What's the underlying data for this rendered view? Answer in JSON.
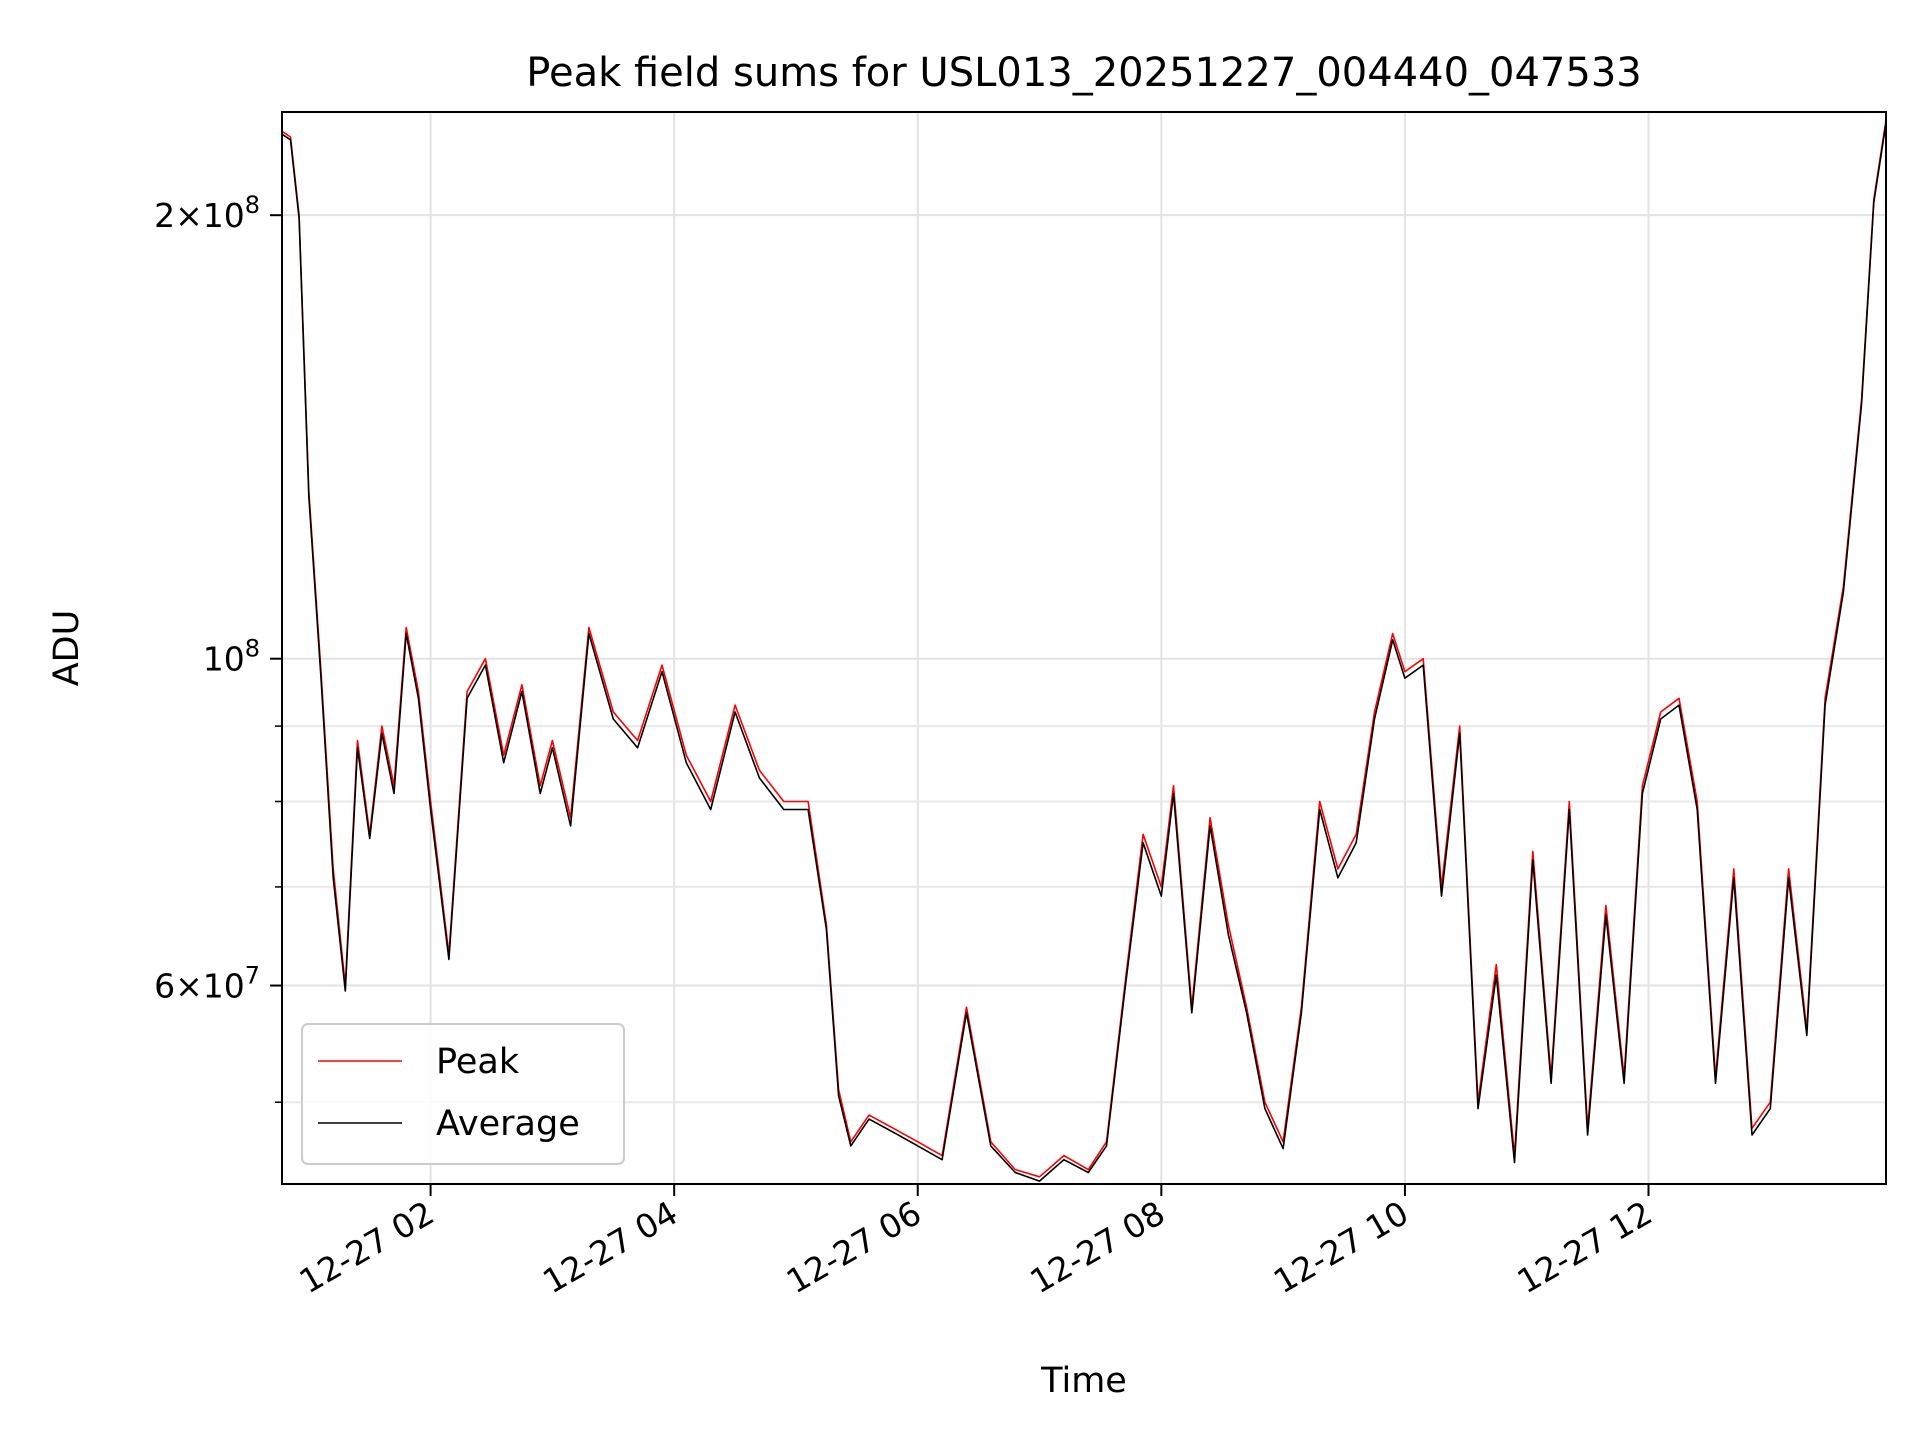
{
  "chart_data": {
    "type": "line",
    "title": "Peak field sums for USL013_20251227_004440_047533",
    "xlabel": "Time",
    "ylabel": "ADU",
    "yscale": "log",
    "xlim_hours": [
      0.78,
      13.95
    ],
    "ylim": [
      44000000,
      235000000
    ],
    "grid": true,
    "legend_position": "lower-left",
    "x_ticks": [
      {
        "hours": 2,
        "label": "12-27 02"
      },
      {
        "hours": 4,
        "label": "12-27 04"
      },
      {
        "hours": 6,
        "label": "12-27 06"
      },
      {
        "hours": 8,
        "label": "12-27 08"
      },
      {
        "hours": 10,
        "label": "12-27 10"
      },
      {
        "hours": 12,
        "label": "12-27 12"
      }
    ],
    "y_ticks": [
      {
        "value": 60000000,
        "base": "6",
        "exp": "7"
      },
      {
        "value": 100000000,
        "base": "10",
        "exp": "8"
      },
      {
        "value": 200000000,
        "base": "2",
        "exp": "8"
      }
    ],
    "y_minor_ticks": [
      50000000,
      70000000,
      80000000,
      90000000
    ],
    "x": [
      0.78,
      0.85,
      0.92,
      1.0,
      1.1,
      1.2,
      1.3,
      1.4,
      1.5,
      1.6,
      1.7,
      1.8,
      1.9,
      2.0,
      2.15,
      2.3,
      2.45,
      2.6,
      2.75,
      2.9,
      3.0,
      3.15,
      3.3,
      3.5,
      3.7,
      3.9,
      4.1,
      4.3,
      4.5,
      4.7,
      4.9,
      5.1,
      5.25,
      5.35,
      5.45,
      5.6,
      5.8,
      6.0,
      6.2,
      6.4,
      6.6,
      6.8,
      7.0,
      7.2,
      7.4,
      7.55,
      7.7,
      7.85,
      8.0,
      8.1,
      8.25,
      8.4,
      8.55,
      8.7,
      8.85,
      9.0,
      9.15,
      9.3,
      9.45,
      9.6,
      9.75,
      9.9,
      10.0,
      10.15,
      10.3,
      10.45,
      10.6,
      10.75,
      10.9,
      11.05,
      11.2,
      11.35,
      11.5,
      11.65,
      11.8,
      11.95,
      12.1,
      12.25,
      12.4,
      12.55,
      12.7,
      12.85,
      13.0,
      13.15,
      13.3,
      13.45,
      13.6,
      13.75,
      13.85,
      13.95
    ],
    "series": [
      {
        "name": "Peak",
        "color": "#ff0000",
        "values": [
          228000000,
          226000000,
          200000000,
          130000000,
          98000000,
          72000000,
          60000000,
          88000000,
          76000000,
          90000000,
          82000000,
          105000000,
          95000000,
          80000000,
          63000000,
          95000000,
          100000000,
          86000000,
          96000000,
          82000000,
          88000000,
          78000000,
          105000000,
          92000000,
          88000000,
          99000000,
          86000000,
          80000000,
          93000000,
          84000000,
          80000000,
          80000000,
          66000000,
          51000000,
          47000000,
          49000000,
          48000000,
          47000000,
          46000000,
          58000000,
          47000000,
          45000000,
          44500000,
          46000000,
          45000000,
          47000000,
          60000000,
          76000000,
          70000000,
          82000000,
          58000000,
          78000000,
          66000000,
          58000000,
          50000000,
          47000000,
          58000000,
          80000000,
          72000000,
          76000000,
          92000000,
          104000000,
          98000000,
          100000000,
          70000000,
          90000000,
          50000000,
          62000000,
          46000000,
          74000000,
          52000000,
          80000000,
          48000000,
          68000000,
          52000000,
          82000000,
          92000000,
          94000000,
          80000000,
          52000000,
          72000000,
          48000000,
          50000000,
          72000000,
          56000000,
          94000000,
          112000000,
          150000000,
          205000000,
          232000000
        ]
      },
      {
        "name": "Average",
        "color": "#000000",
        "values": [
          227000000,
          225000000,
          199000000,
          129000000,
          97000000,
          71000000,
          59500000,
          87000000,
          75500000,
          89000000,
          81000000,
          104000000,
          94000000,
          79000000,
          62500000,
          94000000,
          99000000,
          85000000,
          95000000,
          81000000,
          87000000,
          77000000,
          104000000,
          91000000,
          87000000,
          98000000,
          85000000,
          79000000,
          92000000,
          83000000,
          79000000,
          79000000,
          65500000,
          50500000,
          46700000,
          48700000,
          47700000,
          46700000,
          45700000,
          57500000,
          46700000,
          44800000,
          44200000,
          45700000,
          44800000,
          46700000,
          59500000,
          75000000,
          69000000,
          81000000,
          57500000,
          77000000,
          65000000,
          57500000,
          49500000,
          46500000,
          57500000,
          79000000,
          71000000,
          75000000,
          91000000,
          103000000,
          97000000,
          99000000,
          69000000,
          89000000,
          49500000,
          61000000,
          45500000,
          73000000,
          51500000,
          79000000,
          47500000,
          67000000,
          51500000,
          81000000,
          91000000,
          93000000,
          79000000,
          51500000,
          71000000,
          47500000,
          49500000,
          71000000,
          55500000,
          93000000,
          111000000,
          149000000,
          204000000,
          231000000
        ]
      }
    ]
  }
}
